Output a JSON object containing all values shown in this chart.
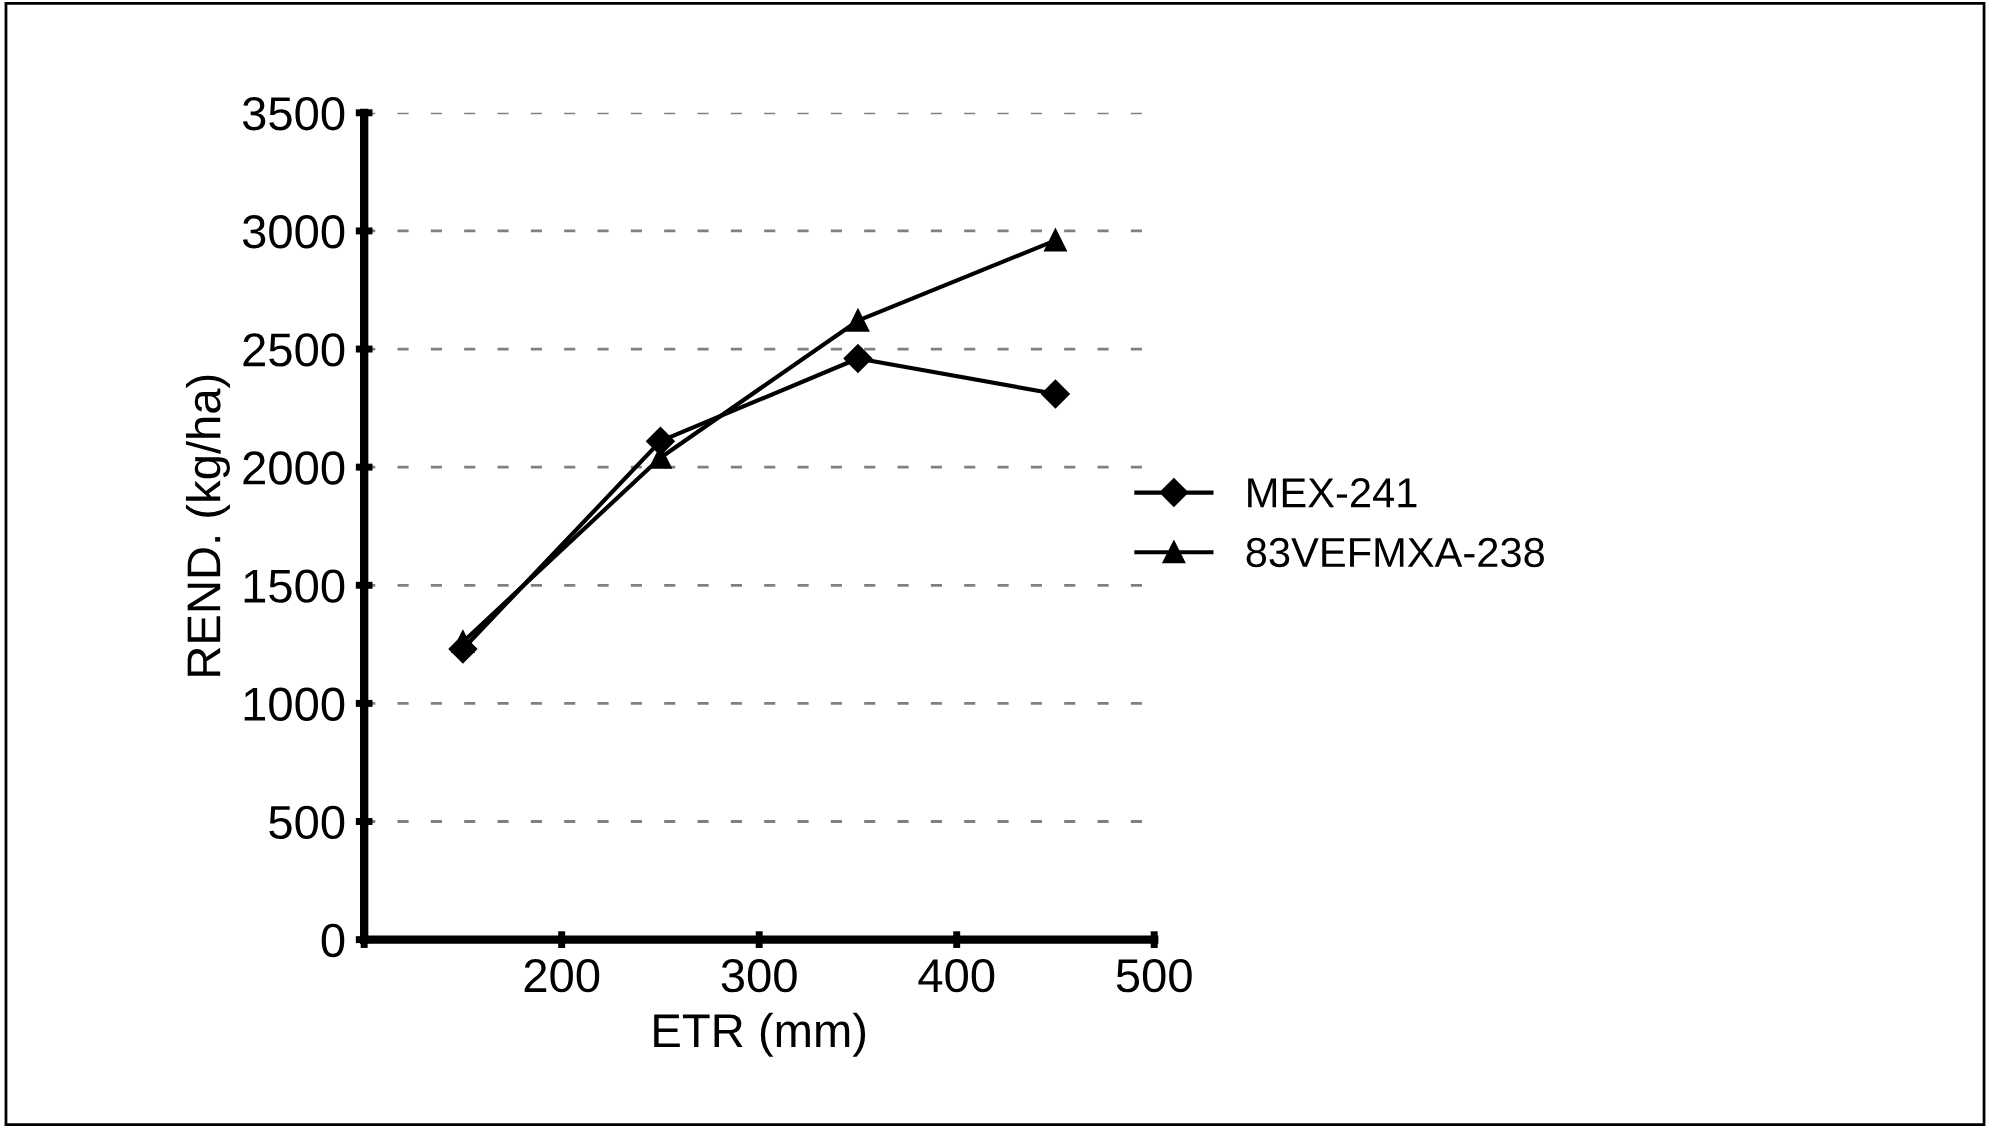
{
  "chart_data": {
    "type": "line",
    "xlabel": "ETR (mm)",
    "ylabel": "REND. (kg/ha)",
    "xlim": [
      100,
      500
    ],
    "xticks": [
      {
        "value": 100,
        "label": null
      },
      200,
      300,
      400,
      500
    ],
    "ylim": [
      0,
      3500
    ],
    "yticks": [
      0,
      500,
      1000,
      1500,
      2000,
      2500,
      3000,
      3500
    ],
    "grid": "y",
    "legend": "right",
    "series": [
      {
        "name": "MEX-241",
        "color": "#000000",
        "marker": "diamond",
        "x": [
          150,
          250,
          350,
          450
        ],
        "values": [
          1230,
          2110,
          2460,
          2310
        ]
      },
      {
        "name": "83VEFMXA-238",
        "color": "#000000",
        "marker": "triangle",
        "x": [
          150,
          250,
          350,
          450
        ],
        "values": [
          1260,
          2040,
          2620,
          2960
        ]
      }
    ]
  }
}
